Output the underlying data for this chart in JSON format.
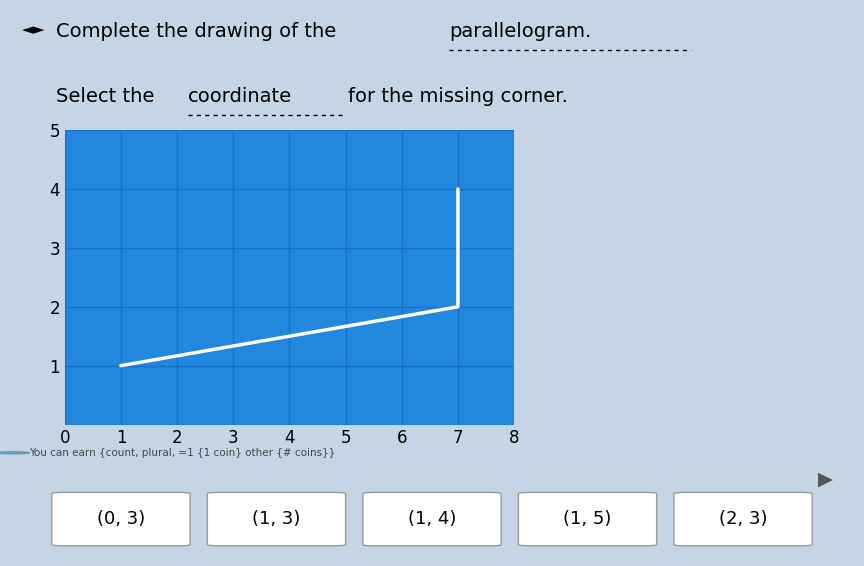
{
  "bg_color": "#c5d5e5",
  "grid_bg_color": "#2288dd",
  "grid_line_color": "#1a6ecc",
  "line_color": "#ffffff",
  "line_points": [
    [
      1,
      1
    ],
    [
      7,
      2
    ],
    [
      7,
      4
    ]
  ],
  "xlim": [
    0,
    8
  ],
  "ylim": [
    0,
    5
  ],
  "xticks": [
    0,
    1,
    2,
    3,
    4,
    5,
    6,
    7,
    8
  ],
  "yticks": [
    0,
    1,
    2,
    3,
    4,
    5
  ],
  "answer_buttons": [
    "(0, 3)",
    "(1, 3)",
    "(1, 4)",
    "(1, 5)",
    "(2, 3)"
  ],
  "button_color": "#ffffff",
  "button_text_color": "#000000",
  "tick_fontsize": 12,
  "line_width": 2.5,
  "title1_prefix": " Complete the drawing of the ",
  "title1_underlined": "parallelogram.",
  "title2_prefix": "Select the ",
  "title2_underlined": "coordinate",
  "title2_suffix": " for the missing corner.",
  "coin_text": "You can earn {count, plural, =1 {1 coin} other {# coins}}",
  "speaker_symbol": "◄►"
}
